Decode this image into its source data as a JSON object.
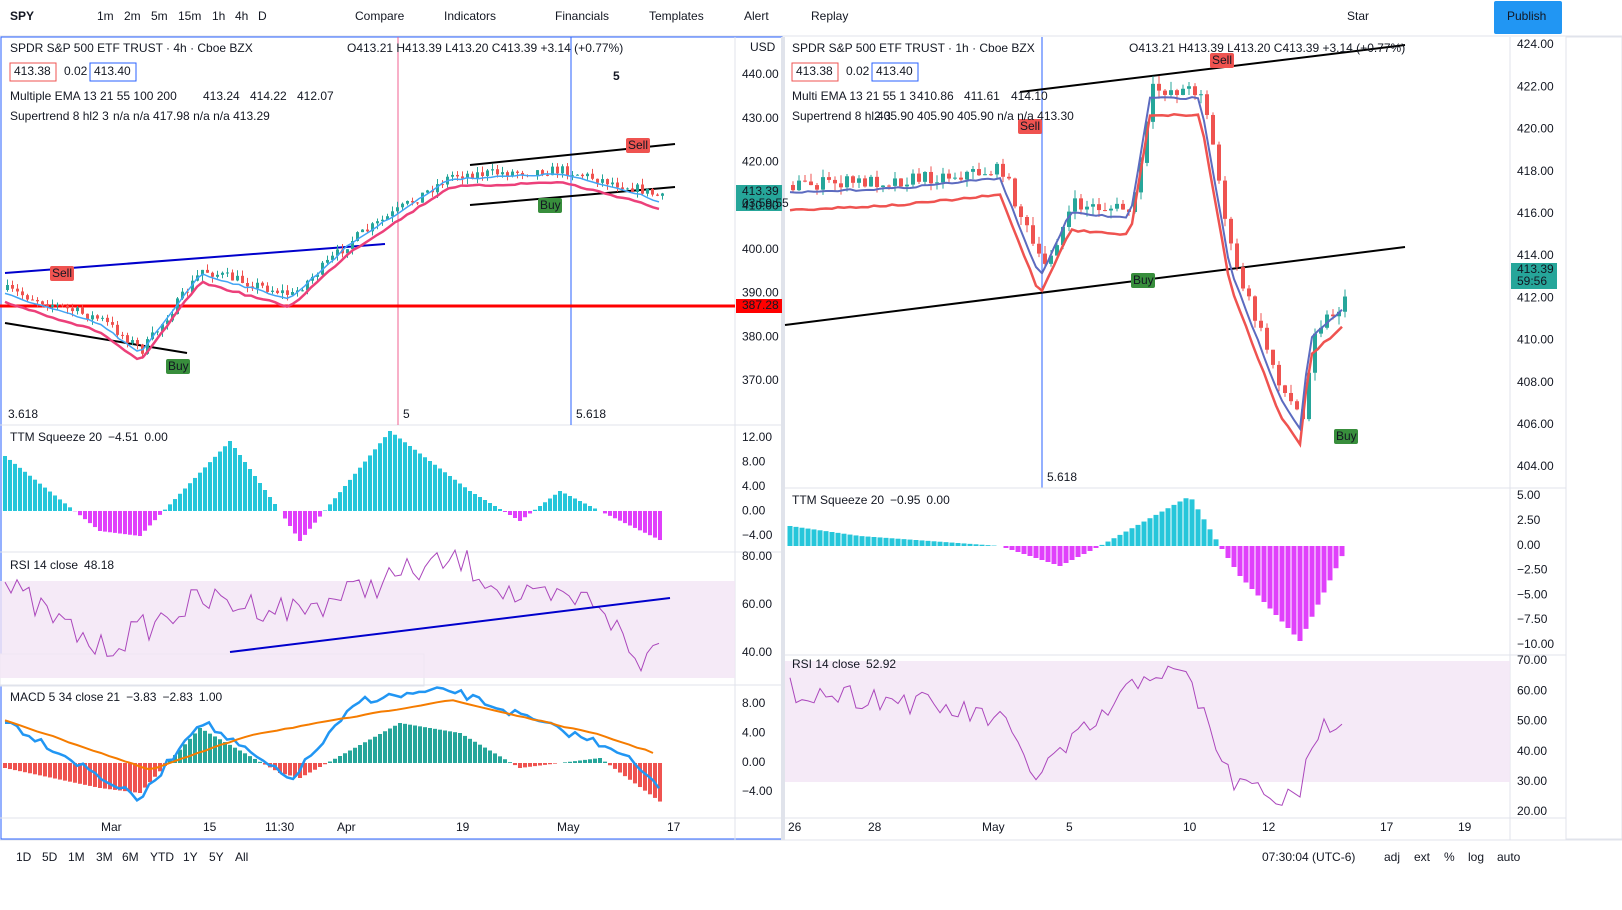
{
  "toolbar": {
    "symbol": "SPY",
    "intervals": [
      "1m",
      "2m",
      "5m",
      "15m",
      "1h",
      "4h",
      "D"
    ],
    "buttons": [
      "Compare",
      "Indicators",
      "Financials",
      "Templates",
      "Alert",
      "Replay"
    ],
    "star": "Star",
    "publish": "Publish"
  },
  "left": {
    "title": "SPDR S&P 500 ETF TRUST · 4h · Cboe BZX",
    "ohlc": "O413.21 H413.39 L413.20 C413.39 +3.14 (+0.77%)",
    "bid": "413.38",
    "spread": "0.02",
    "ask": "413.40",
    "ema": {
      "name": "Multiple EMA 13 21 55 100 200",
      "values": [
        "413.24",
        "414.22",
        "412.07"
      ]
    },
    "supertrend": {
      "name": "Supertrend 8 hl2 3",
      "values": "n/a n/a 417.98 n/a n/a 413.29"
    },
    "currency": "USD",
    "price_axis": [
      "440.00",
      "430.00",
      "420.00",
      "410.00",
      "400.00",
      "390.00",
      "380.00",
      "370.00"
    ],
    "last_price": "413.39",
    "countdown": "03:59:55",
    "level": "387.28",
    "fib": [
      "3.618",
      "5",
      "5.618"
    ],
    "markers": [
      "Sell",
      "Buy",
      "Sell",
      "Buy",
      "5"
    ],
    "ttm": {
      "name": "TTM Squeeze 20",
      "values": [
        "−4.51",
        "0.00"
      ],
      "axis": [
        "12.00",
        "8.00",
        "4.00",
        "0.00",
        "−4.00"
      ]
    },
    "rsi": {
      "name": "RSI 14 close",
      "values": [
        "48.18"
      ],
      "axis": [
        "80.00",
        "60.00",
        "40.00"
      ]
    },
    "macd": {
      "name": "MACD 5 34 close 21",
      "values": [
        "−3.83",
        "−2.83",
        "1.00"
      ],
      "axis": [
        "8.00",
        "4.00",
        "0.00",
        "−4.00"
      ]
    },
    "time_axis": [
      "Mar",
      "15",
      "11:30",
      "Apr",
      "19",
      "May",
      "17"
    ]
  },
  "right": {
    "title": "SPDR S&P 500 ETF TRUST · 1h · Cboe BZX",
    "ohlc": "O413.21 H413.39 L413.20 C413.39 +3.14 (+0.77%)",
    "bid": "413.38",
    "spread": "0.02",
    "ask": "413.40",
    "ema": {
      "name": "Multi EMA 13 21 55 1 3",
      "values": [
        "410.86",
        "411.61",
        "414.10"
      ]
    },
    "supertrend": {
      "name": "Supertrend 8 hl2 3",
      "values": "405.90 405.90 405.90 n/a n/a 413.30"
    },
    "price_axis": [
      "424.00",
      "422.00",
      "420.00",
      "418.00",
      "416.00",
      "414.00",
      "412.00",
      "410.00",
      "408.00",
      "406.00",
      "404.00"
    ],
    "last_price": "413.39",
    "countdown": "59:56",
    "fib": [
      "5.618"
    ],
    "markers": [
      "Sell",
      "Sell",
      "Buy",
      "Buy"
    ],
    "ttm": {
      "name": "TTM Squeeze 20",
      "values": [
        "−0.95",
        "0.00"
      ],
      "axis": [
        "5.00",
        "2.50",
        "0.00",
        "−2.50",
        "−5.00",
        "−7.50",
        "−10.00"
      ]
    },
    "rsi": {
      "name": "RSI 14 close",
      "values": [
        "52.92"
      ],
      "axis": [
        "70.00",
        "60.00",
        "50.00",
        "40.00",
        "30.00",
        "20.00"
      ]
    },
    "time_axis": [
      "26",
      "28",
      "May",
      "5",
      "10",
      "12",
      "17",
      "19"
    ]
  },
  "bottom": {
    "ranges": [
      "1D",
      "5D",
      "1M",
      "3M",
      "6M",
      "YTD",
      "1Y",
      "5Y",
      "All"
    ],
    "clock": "07:30:04 (UTC-6)",
    "options": [
      "adj",
      "ext",
      "%",
      "log",
      "auto"
    ]
  }
}
